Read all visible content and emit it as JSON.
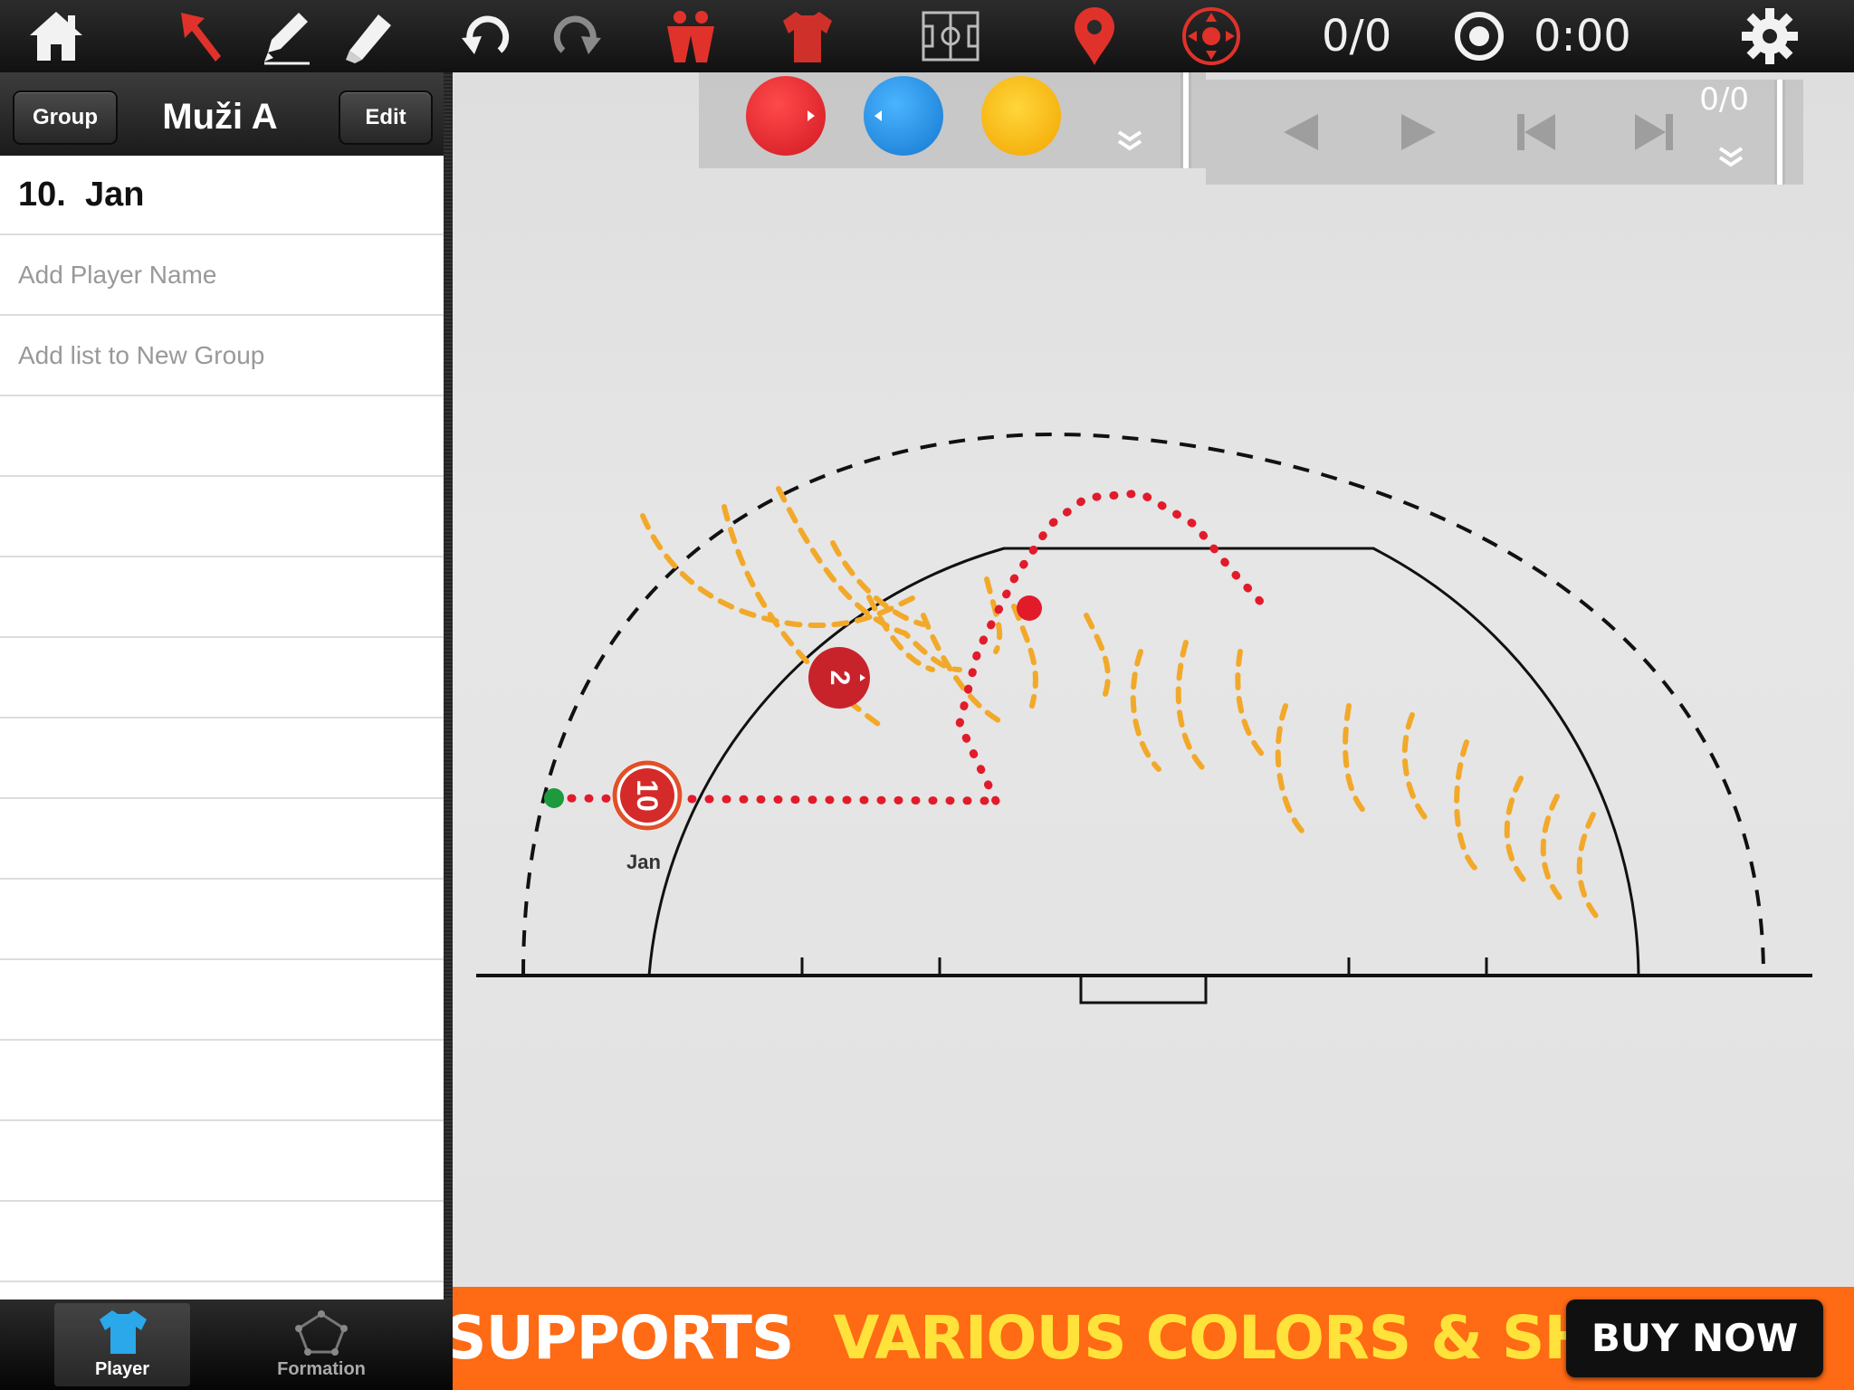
{
  "toolbar": {
    "counter": "0/0",
    "time": "0:00",
    "accent_red": "#e0322a"
  },
  "sidebar": {
    "group_button": "Group",
    "group_title": "Muži A",
    "edit_button": "Edit",
    "selected_player": {
      "number": "10.",
      "name": "Jan"
    },
    "add_player_placeholder": "Add Player Name",
    "add_list_label": "Add list to New Group"
  },
  "tabs": [
    {
      "label": "Player",
      "active": true
    },
    {
      "label": "Formation",
      "active": false
    }
  ],
  "board": {
    "play_counter": "0/0",
    "players": [
      {
        "number": "10",
        "label": "Jan",
        "color": "#d52a2a"
      },
      {
        "number": "2",
        "label": "",
        "color": "#c8232b"
      }
    ],
    "palette_colors": [
      "#e0242c",
      "#1a8ee0",
      "#f7b500"
    ],
    "path_color": "#f2a92a",
    "pass_color": "#e21b2b"
  },
  "ad": {
    "text_part1": "SUPPORTS",
    "text_part2": "VARIOUS COLORS & SHAPES",
    "button": "BUY NOW"
  }
}
